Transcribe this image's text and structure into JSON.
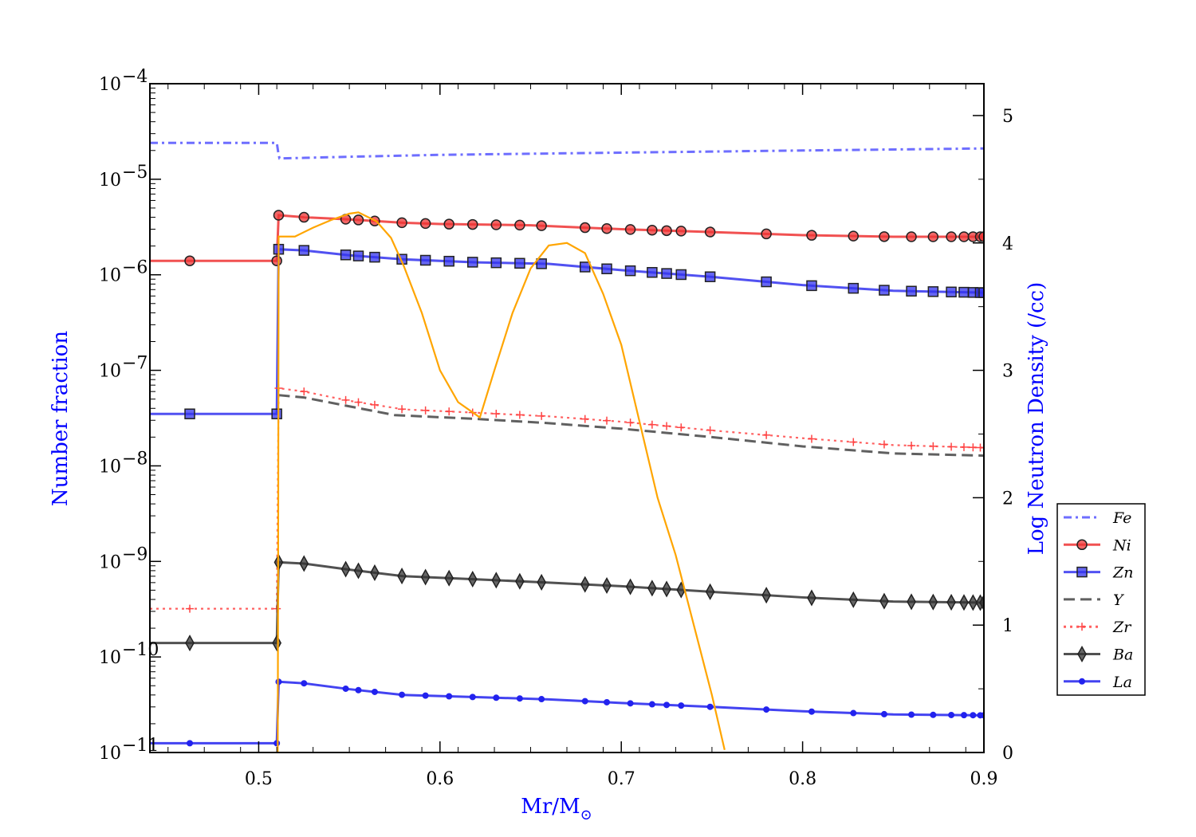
{
  "chart_data": {
    "type": "line",
    "xlabel": "Mr/M",
    "xlabel_sub": "⊙",
    "ylabel": "Number fraction",
    "y2label": "Log Neutron Density (/cc)",
    "xlim": [
      0.44,
      0.9
    ],
    "ylim_log10": [
      -11,
      -4
    ],
    "y2lim": [
      0,
      5.25
    ],
    "y_scale": "log",
    "x_ticks": [
      "0.5",
      "0.6",
      "0.7",
      "0.8",
      "0.9"
    ],
    "x_tick_values": [
      0.5,
      0.6,
      0.7,
      0.8,
      0.9
    ],
    "y_tick_exponents": [
      -11,
      -10,
      -9,
      -8,
      -7,
      -6,
      -5,
      -4
    ],
    "y_tick_base": "10",
    "y2_ticks": [
      "0",
      "1",
      "2",
      "3",
      "4",
      "5"
    ],
    "y2_tick_values": [
      0,
      1,
      2,
      3,
      4,
      5
    ],
    "legend_position": "right, outside the plot",
    "grid": false,
    "series": [
      {
        "name": "Fe",
        "color": "#5555ff",
        "dash": "dashdot",
        "marker": "none",
        "points": [
          [
            0.44,
            2.4e-05
          ],
          [
            0.51,
            2.4e-05
          ],
          [
            0.511,
            1.8e-05
          ],
          [
            0.5115,
            1.65e-05
          ],
          [
            0.55,
            1.72e-05
          ],
          [
            0.6,
            1.8e-05
          ],
          [
            0.7,
            1.9e-05
          ],
          [
            0.8,
            2e-05
          ],
          [
            0.9,
            2.1e-05
          ]
        ]
      },
      {
        "name": "Ni",
        "color": "#ee3333",
        "dash": "solid",
        "marker": "circle",
        "points": [
          [
            0.44,
            1.4e-06
          ],
          [
            0.51,
            1.4e-06
          ],
          [
            0.511,
            4.2e-06
          ],
          [
            0.525,
            4e-06
          ],
          [
            0.55,
            3.8e-06
          ],
          [
            0.58,
            3.5e-06
          ],
          [
            0.6,
            3.4e-06
          ],
          [
            0.65,
            3.3e-06
          ],
          [
            0.7,
            3e-06
          ],
          [
            0.75,
            2.8e-06
          ],
          [
            0.8,
            2.6e-06
          ],
          [
            0.85,
            2.5e-06
          ],
          [
            0.9,
            2.5e-06
          ]
        ],
        "markers_x": [
          0.462,
          0.51,
          0.511,
          0.525,
          0.548,
          0.555,
          0.564,
          0.579,
          0.592,
          0.605,
          0.618,
          0.631,
          0.644,
          0.656,
          0.68,
          0.692,
          0.705,
          0.717,
          0.725,
          0.733,
          0.749,
          0.78,
          0.805,
          0.828,
          0.845,
          0.86,
          0.872,
          0.882,
          0.889,
          0.894,
          0.898,
          0.9
        ]
      },
      {
        "name": "Zn",
        "color": "#3333ee",
        "dash": "solid",
        "marker": "square",
        "points": [
          [
            0.44,
            3.5e-08
          ],
          [
            0.51,
            3.5e-08
          ],
          [
            0.511,
            1.85e-06
          ],
          [
            0.525,
            1.8e-06
          ],
          [
            0.55,
            1.6e-06
          ],
          [
            0.58,
            1.45e-06
          ],
          [
            0.62,
            1.35e-06
          ],
          [
            0.66,
            1.3e-06
          ],
          [
            0.7,
            1.12e-06
          ],
          [
            0.75,
            9.5e-07
          ],
          [
            0.8,
            7.8e-07
          ],
          [
            0.85,
            6.8e-07
          ],
          [
            0.9,
            6.5e-07
          ]
        ],
        "markers_x": [
          0.462,
          0.51,
          0.511,
          0.525,
          0.548,
          0.555,
          0.564,
          0.579,
          0.592,
          0.605,
          0.618,
          0.631,
          0.644,
          0.656,
          0.68,
          0.692,
          0.705,
          0.717,
          0.725,
          0.733,
          0.749,
          0.78,
          0.805,
          0.828,
          0.845,
          0.86,
          0.872,
          0.882,
          0.889,
          0.894,
          0.898,
          0.9
        ]
      },
      {
        "name": "Y",
        "color": "#444444",
        "dash": "dashed",
        "marker": "none",
        "points": [
          [
            0.511,
            5.5e-08
          ],
          [
            0.525,
            5.2e-08
          ],
          [
            0.55,
            4.2e-08
          ],
          [
            0.575,
            3.4e-08
          ],
          [
            0.62,
            3.1e-08
          ],
          [
            0.66,
            2.8e-08
          ],
          [
            0.7,
            2.45e-08
          ],
          [
            0.75,
            2e-08
          ],
          [
            0.8,
            1.6e-08
          ],
          [
            0.85,
            1.35e-08
          ],
          [
            0.9,
            1.28e-08
          ]
        ]
      },
      {
        "name": "Zr",
        "color": "#ff4444",
        "dash": "dotted",
        "marker": "plus",
        "points": [
          [
            0.44,
            3.2e-10
          ],
          [
            0.51,
            3.2e-10
          ],
          [
            0.511,
            6.5e-08
          ],
          [
            0.525,
            6e-08
          ],
          [
            0.55,
            4.8e-08
          ],
          [
            0.58,
            3.9e-08
          ],
          [
            0.62,
            3.6e-08
          ],
          [
            0.66,
            3.3e-08
          ],
          [
            0.7,
            2.9e-08
          ],
          [
            0.75,
            2.35e-08
          ],
          [
            0.8,
            1.95e-08
          ],
          [
            0.85,
            1.65e-08
          ],
          [
            0.9,
            1.55e-08
          ]
        ],
        "markers_x": [
          0.462,
          0.51,
          0.511,
          0.525,
          0.548,
          0.555,
          0.564,
          0.579,
          0.592,
          0.605,
          0.618,
          0.631,
          0.644,
          0.656,
          0.68,
          0.692,
          0.705,
          0.717,
          0.725,
          0.733,
          0.749,
          0.78,
          0.805,
          0.828,
          0.845,
          0.86,
          0.872,
          0.882,
          0.889,
          0.894,
          0.898,
          0.9
        ]
      },
      {
        "name": "Ba",
        "color": "#333333",
        "dash": "solid",
        "marker": "diamond",
        "points": [
          [
            0.44,
            1.4e-10
          ],
          [
            0.51,
            1.4e-10
          ],
          [
            0.511,
            9.8e-10
          ],
          [
            0.525,
            9.5e-10
          ],
          [
            0.55,
            8.2e-10
          ],
          [
            0.58,
            7e-10
          ],
          [
            0.62,
            6.5e-10
          ],
          [
            0.66,
            6e-10
          ],
          [
            0.7,
            5.5e-10
          ],
          [
            0.75,
            4.8e-10
          ],
          [
            0.8,
            4.2e-10
          ],
          [
            0.85,
            3.8e-10
          ],
          [
            0.9,
            3.7e-10
          ]
        ],
        "markers_x": [
          0.462,
          0.51,
          0.511,
          0.525,
          0.548,
          0.555,
          0.564,
          0.579,
          0.592,
          0.605,
          0.618,
          0.631,
          0.644,
          0.656,
          0.68,
          0.692,
          0.705,
          0.717,
          0.725,
          0.733,
          0.749,
          0.78,
          0.805,
          0.828,
          0.845,
          0.86,
          0.872,
          0.882,
          0.889,
          0.894,
          0.898,
          0.9
        ]
      },
      {
        "name": "La",
        "color": "#2222ee",
        "dash": "solid",
        "marker": "dot",
        "points": [
          [
            0.44,
            1.25e-11
          ],
          [
            0.51,
            1.25e-11
          ],
          [
            0.511,
            5.5e-11
          ],
          [
            0.525,
            5.3e-11
          ],
          [
            0.55,
            4.6e-11
          ],
          [
            0.58,
            4e-11
          ],
          [
            0.62,
            3.8e-11
          ],
          [
            0.66,
            3.6e-11
          ],
          [
            0.7,
            3.3e-11
          ],
          [
            0.75,
            3e-11
          ],
          [
            0.8,
            2.7e-11
          ],
          [
            0.85,
            2.5e-11
          ],
          [
            0.9,
            2.45e-11
          ]
        ],
        "markers_x": [
          0.462,
          0.51,
          0.511,
          0.525,
          0.548,
          0.555,
          0.564,
          0.579,
          0.592,
          0.605,
          0.618,
          0.631,
          0.644,
          0.656,
          0.68,
          0.692,
          0.705,
          0.717,
          0.725,
          0.733,
          0.749,
          0.78,
          0.805,
          0.828,
          0.845,
          0.86,
          0.872,
          0.882,
          0.889,
          0.894,
          0.898,
          0.9
        ]
      }
    ],
    "neutron_density": {
      "axis": "right",
      "color": "#ffa500",
      "points": [
        [
          0.5105,
          0.0
        ],
        [
          0.5108,
          2.0
        ],
        [
          0.511,
          4.05
        ],
        [
          0.52,
          4.05
        ],
        [
          0.53,
          4.12
        ],
        [
          0.54,
          4.18
        ],
        [
          0.55,
          4.23
        ],
        [
          0.555,
          4.24
        ],
        [
          0.565,
          4.17
        ],
        [
          0.573,
          4.04
        ],
        [
          0.58,
          3.82
        ],
        [
          0.59,
          3.45
        ],
        [
          0.6,
          3.0
        ],
        [
          0.61,
          2.75
        ],
        [
          0.622,
          2.63
        ],
        [
          0.63,
          3.0
        ],
        [
          0.64,
          3.45
        ],
        [
          0.65,
          3.8
        ],
        [
          0.66,
          3.98
        ],
        [
          0.67,
          4.0
        ],
        [
          0.68,
          3.92
        ],
        [
          0.69,
          3.6
        ],
        [
          0.7,
          3.2
        ],
        [
          0.71,
          2.6
        ],
        [
          0.72,
          2.0
        ],
        [
          0.73,
          1.55
        ],
        [
          0.74,
          1.0
        ],
        [
          0.75,
          0.45
        ],
        [
          0.757,
          0.02
        ]
      ]
    }
  }
}
